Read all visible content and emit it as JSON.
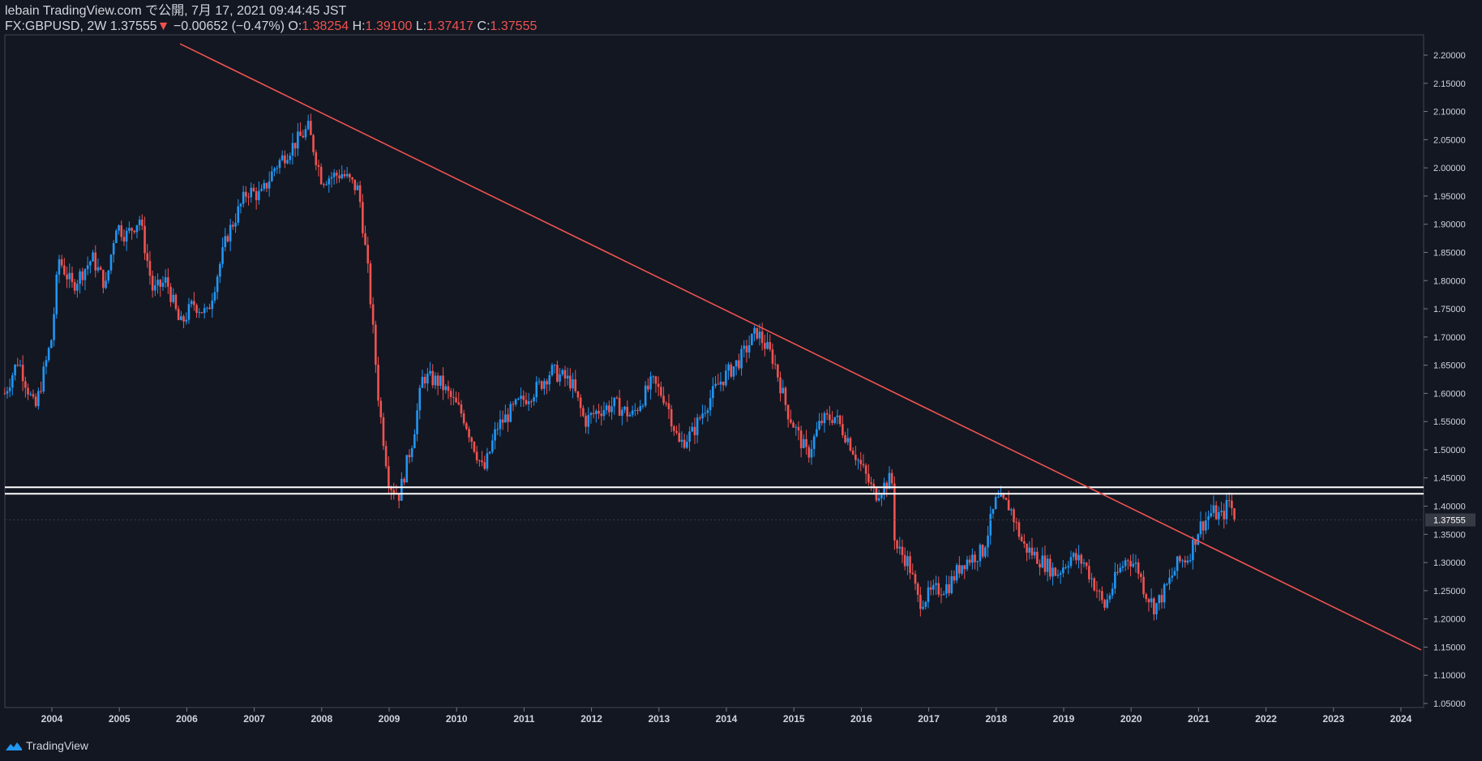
{
  "header": {
    "publisher": "lebain TradingView.com で公開, 7月 17, 2021 09:44:45 JST",
    "symbol": "FX:GBPUSD, 2W",
    "last": "1.37555",
    "change_arrow": "▼",
    "change": "−0.00652 (−0.47%)",
    "o_label": "O:",
    "o": "1.38254",
    "h_label": "H:",
    "h": "1.39100",
    "l_label": "L:",
    "l": "1.37417",
    "c_label": "C:",
    "c": "1.37555"
  },
  "footer": {
    "brand": "TradingView"
  },
  "colors": {
    "background": "#131722",
    "up": "#2196f3",
    "down": "#ef5350",
    "trendline": "#ef5350",
    "level": "#ffffff",
    "text": "#d1d4dc",
    "price_tag_bg": "#363a45"
  },
  "chart_data": {
    "type": "candlestick",
    "symbol": "FX:GBPUSD",
    "interval": "2W",
    "x_ticks": [
      "2004",
      "2005",
      "2006",
      "2007",
      "2008",
      "2009",
      "2010",
      "2011",
      "2012",
      "2013",
      "2014",
      "2015",
      "2016",
      "2017",
      "2018",
      "2019",
      "2020",
      "2021",
      "2022",
      "2023",
      "2024"
    ],
    "y_ticks": [
      "2.20000",
      "2.15000",
      "2.10000",
      "2.05000",
      "2.00000",
      "1.95000",
      "1.90000",
      "1.85000",
      "1.80000",
      "1.75000",
      "1.70000",
      "1.65000",
      "1.60000",
      "1.55000",
      "1.50000",
      "1.45000",
      "1.40000",
      "1.35000",
      "1.30000",
      "1.25000",
      "1.20000",
      "1.15000",
      "1.10000",
      "1.05000"
    ],
    "ylim": [
      1.05,
      2.2
    ],
    "xlim": [
      2003.3,
      2024.3
    ],
    "last_price": "1.37555",
    "price_path": [
      [
        2003.3,
        1.6
      ],
      [
        2003.5,
        1.66
      ],
      [
        2003.75,
        1.57
      ],
      [
        2004.0,
        1.7
      ],
      [
        2004.1,
        1.84
      ],
      [
        2004.3,
        1.79
      ],
      [
        2004.6,
        1.84
      ],
      [
        2004.8,
        1.79
      ],
      [
        2004.95,
        1.9
      ],
      [
        2005.1,
        1.88
      ],
      [
        2005.3,
        1.91
      ],
      [
        2005.5,
        1.78
      ],
      [
        2005.7,
        1.8
      ],
      [
        2005.9,
        1.72
      ],
      [
        2006.1,
        1.76
      ],
      [
        2006.3,
        1.74
      ],
      [
        2006.6,
        1.88
      ],
      [
        2006.9,
        1.96
      ],
      [
        2007.1,
        1.95
      ],
      [
        2007.3,
        2.0
      ],
      [
        2007.5,
        2.03
      ],
      [
        2007.8,
        2.07
      ],
      [
        2008.0,
        1.98
      ],
      [
        2008.3,
        1.99
      ],
      [
        2008.55,
        1.96
      ],
      [
        2008.7,
        1.8
      ],
      [
        2008.85,
        1.58
      ],
      [
        2009.0,
        1.44
      ],
      [
        2009.15,
        1.42
      ],
      [
        2009.35,
        1.52
      ],
      [
        2009.5,
        1.63
      ],
      [
        2009.75,
        1.62
      ],
      [
        2010.1,
        1.56
      ],
      [
        2010.4,
        1.46
      ],
      [
        2010.6,
        1.54
      ],
      [
        2010.9,
        1.58
      ],
      [
        2011.2,
        1.61
      ],
      [
        2011.4,
        1.64
      ],
      [
        2011.7,
        1.62
      ],
      [
        2011.9,
        1.55
      ],
      [
        2012.1,
        1.57
      ],
      [
        2012.35,
        1.58
      ],
      [
        2012.6,
        1.56
      ],
      [
        2012.9,
        1.62
      ],
      [
        2013.1,
        1.59
      ],
      [
        2013.3,
        1.51
      ],
      [
        2013.5,
        1.53
      ],
      [
        2013.7,
        1.58
      ],
      [
        2013.9,
        1.62
      ],
      [
        2014.2,
        1.66
      ],
      [
        2014.45,
        1.71
      ],
      [
        2014.7,
        1.66
      ],
      [
        2014.9,
        1.57
      ],
      [
        2015.2,
        1.49
      ],
      [
        2015.4,
        1.55
      ],
      [
        2015.6,
        1.56
      ],
      [
        2015.8,
        1.52
      ],
      [
        2016.0,
        1.47
      ],
      [
        2016.2,
        1.42
      ],
      [
        2016.45,
        1.45
      ],
      [
        2016.5,
        1.33
      ],
      [
        2016.7,
        1.3
      ],
      [
        2016.85,
        1.23
      ],
      [
        2017.1,
        1.25
      ],
      [
        2017.3,
        1.26
      ],
      [
        2017.5,
        1.3
      ],
      [
        2017.8,
        1.32
      ],
      [
        2018.0,
        1.41
      ],
      [
        2018.2,
        1.4
      ],
      [
        2018.4,
        1.33
      ],
      [
        2018.7,
        1.3
      ],
      [
        2018.9,
        1.28
      ],
      [
        2019.1,
        1.31
      ],
      [
        2019.3,
        1.3
      ],
      [
        2019.5,
        1.25
      ],
      [
        2019.6,
        1.22
      ],
      [
        2019.8,
        1.28
      ],
      [
        2019.95,
        1.31
      ],
      [
        2020.1,
        1.29
      ],
      [
        2020.2,
        1.25
      ],
      [
        2020.35,
        1.22
      ],
      [
        2020.5,
        1.25
      ],
      [
        2020.7,
        1.3
      ],
      [
        2020.85,
        1.31
      ],
      [
        2021.0,
        1.36
      ],
      [
        2021.2,
        1.39
      ],
      [
        2021.35,
        1.38
      ],
      [
        2021.45,
        1.41
      ],
      [
        2021.55,
        1.3755
      ]
    ],
    "annotations": {
      "trendline": {
        "from": [
          2005.9,
          2.22
        ],
        "to": [
          2024.3,
          1.145
        ]
      },
      "levels": [
        1.4335,
        1.422
      ]
    }
  }
}
